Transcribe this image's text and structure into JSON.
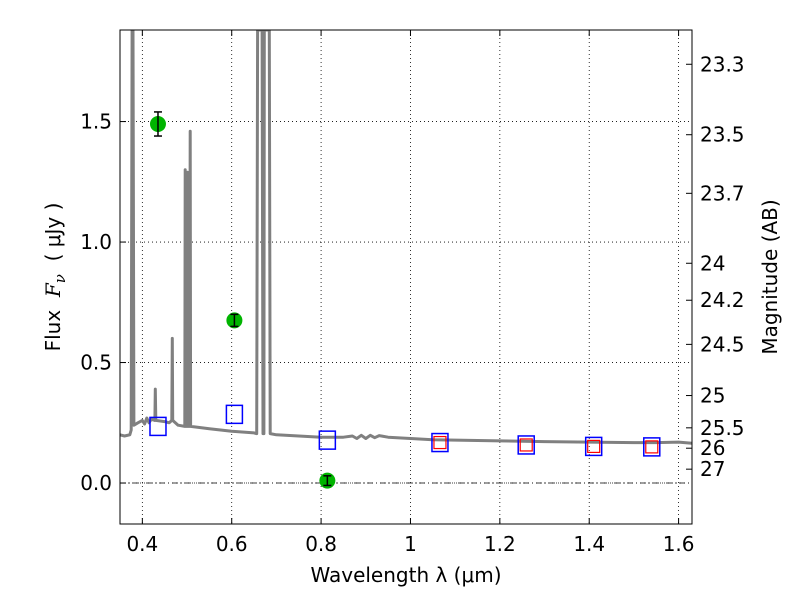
{
  "chart_data": {
    "type": "scatter",
    "xlabel": "Wavelength  λ (μm)",
    "ylabel": "Flux  F_ν  ( μJy )",
    "ylabel_parts": {
      "prefix": "Flux  ",
      "symbol": "F",
      "sub": "ν",
      "suffix": "  ( μJy )"
    },
    "y2label": "Magnitude (AB)",
    "xlim": [
      0.35,
      1.63
    ],
    "ylim": [
      -0.17,
      1.88
    ],
    "grid": true,
    "x_ticks": [
      0.4,
      0.6,
      0.8,
      1.0,
      1.2,
      1.4,
      1.6
    ],
    "x_tick_labels": [
      "0.4",
      "0.6",
      "0.8",
      "1",
      "1.2",
      "1.4",
      "1.6"
    ],
    "y_ticks": [
      0.0,
      0.5,
      1.0,
      1.5
    ],
    "y_tick_labels": [
      "0.0",
      "0.5",
      "1.0",
      "1.5"
    ],
    "mag_ticks": [
      "23.3",
      "23.5",
      "23.7",
      "24",
      "24.2",
      "24.5",
      "25",
      "25.5",
      "26",
      "27"
    ],
    "zero_line": 0.0,
    "colors": {
      "model": "#808080",
      "observed": "#00b400",
      "model_box": "#0000ff",
      "model_box_inner": "#ff0000",
      "grid": "#000000"
    },
    "observed_photometry": [
      {
        "x": 0.435,
        "y": 1.49,
        "yerr": 0.05
      },
      {
        "x": 0.606,
        "y": 0.675,
        "yerr": 0.025
      },
      {
        "x": 0.814,
        "y": 0.01,
        "yerr": 0.02
      }
    ],
    "model_photometry": [
      {
        "x": 0.435,
        "y": 0.235,
        "inner": false
      },
      {
        "x": 0.606,
        "y": 0.285,
        "inner": false
      },
      {
        "x": 0.814,
        "y": 0.178,
        "inner": false
      },
      {
        "x": 1.066,
        "y": 0.168,
        "inner": true
      },
      {
        "x": 1.259,
        "y": 0.158,
        "inner": true
      },
      {
        "x": 1.41,
        "y": 0.152,
        "inner": true
      },
      {
        "x": 1.54,
        "y": 0.15,
        "inner": true
      }
    ],
    "model_spectrum": [
      [
        0.35,
        0.2
      ],
      [
        0.36,
        0.195
      ],
      [
        0.372,
        0.2
      ],
      [
        0.375,
        0.22
      ],
      [
        0.377,
        1.88
      ],
      [
        0.379,
        1.88
      ],
      [
        0.381,
        0.24
      ],
      [
        0.39,
        0.25
      ],
      [
        0.4,
        0.26
      ],
      [
        0.405,
        0.245
      ],
      [
        0.41,
        0.27
      ],
      [
        0.415,
        0.25
      ],
      [
        0.42,
        0.265
      ],
      [
        0.428,
        0.26
      ],
      [
        0.429,
        0.39
      ],
      [
        0.43,
        0.26
      ],
      [
        0.45,
        0.255
      ],
      [
        0.46,
        0.25
      ],
      [
        0.466,
        0.26
      ],
      [
        0.467,
        0.6
      ],
      [
        0.468,
        0.26
      ],
      [
        0.48,
        0.24
      ],
      [
        0.495,
        0.235
      ],
      [
        0.496,
        1.3
      ],
      [
        0.497,
        0.235
      ],
      [
        0.5,
        0.235
      ],
      [
        0.501,
        1.29
      ],
      [
        0.502,
        0.235
      ],
      [
        0.506,
        0.235
      ],
      [
        0.507,
        1.46
      ],
      [
        0.508,
        0.235
      ],
      [
        0.55,
        0.225
      ],
      [
        0.6,
        0.215
      ],
      [
        0.65,
        0.208
      ],
      [
        0.655,
        0.205
      ],
      [
        0.656,
        0.205
      ],
      [
        0.658,
        1.88
      ],
      [
        0.668,
        1.88
      ],
      [
        0.67,
        0.205
      ],
      [
        0.672,
        0.205
      ],
      [
        0.673,
        1.88
      ],
      [
        0.684,
        1.88
      ],
      [
        0.686,
        0.205
      ],
      [
        0.7,
        0.2
      ],
      [
        0.75,
        0.195
      ],
      [
        0.8,
        0.19
      ],
      [
        0.85,
        0.19
      ],
      [
        0.87,
        0.195
      ],
      [
        0.88,
        0.185
      ],
      [
        0.89,
        0.198
      ],
      [
        0.9,
        0.185
      ],
      [
        0.91,
        0.198
      ],
      [
        0.92,
        0.188
      ],
      [
        0.93,
        0.197
      ],
      [
        0.95,
        0.19
      ],
      [
        1.0,
        0.185
      ],
      [
        1.05,
        0.18
      ],
      [
        1.1,
        0.178
      ],
      [
        1.2,
        0.175
      ],
      [
        1.3,
        0.172
      ],
      [
        1.4,
        0.17
      ],
      [
        1.5,
        0.168
      ],
      [
        1.55,
        0.168
      ],
      [
        1.6,
        0.17
      ],
      [
        1.63,
        0.165
      ]
    ]
  }
}
